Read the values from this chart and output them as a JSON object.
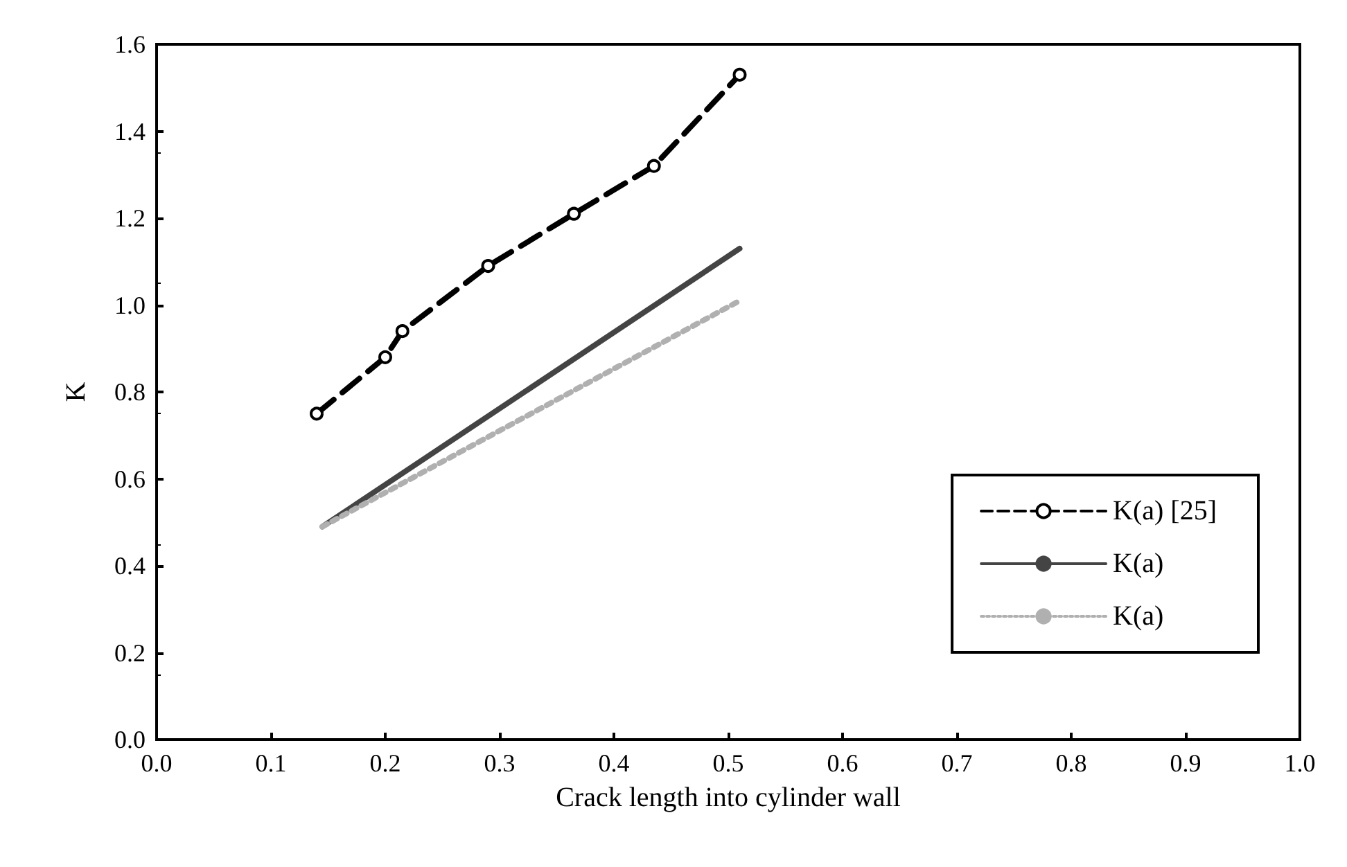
{
  "chart_data": {
    "type": "line",
    "xlabel": "Crack length into cylinder wall",
    "ylabel": "K",
    "xlim": [
      0,
      1
    ],
    "xticks": [
      {
        "value": 0,
        "label": "0.0"
      },
      0.1,
      0.2,
      0.3,
      0.4,
      0.5,
      0.6,
      0.7,
      0.8,
      0.9,
      {
        "value": 1,
        "label": "1.0"
      }
    ],
    "ylim": [
      0,
      1.6
    ],
    "yticks": [
      {
        "value": 0,
        "label": "0.0"
      },
      0.2,
      0.4,
      0.6,
      0.8,
      {
        "value": 1,
        "label": "1.0"
      },
      1.2,
      1.4,
      1.6
    ],
    "grid": false,
    "legend": "right",
    "series": [
      {
        "name": "K(a) [25]",
        "color": "#000000",
        "line_style": "dashed",
        "marker": "circle",
        "x": [
          0.14,
          0.2,
          0.215,
          0.29,
          0.365,
          0.435,
          0.51
        ],
        "values": [
          0.75,
          0.88,
          0.94,
          1.09,
          1.21,
          1.32,
          1.53
        ]
      },
      {
        "name": "K(a)",
        "color": "#444444",
        "line_style": "solid",
        "marker": "none",
        "x": [
          0.145,
          0.51
        ],
        "values": [
          0.49,
          1.13
        ]
      },
      {
        "name": "K(a)",
        "color": "#b0b0b0",
        "line_style": "dotted",
        "marker": "none",
        "x": [
          0.145,
          0.51
        ],
        "values": [
          0.49,
          1.01
        ]
      }
    ]
  }
}
